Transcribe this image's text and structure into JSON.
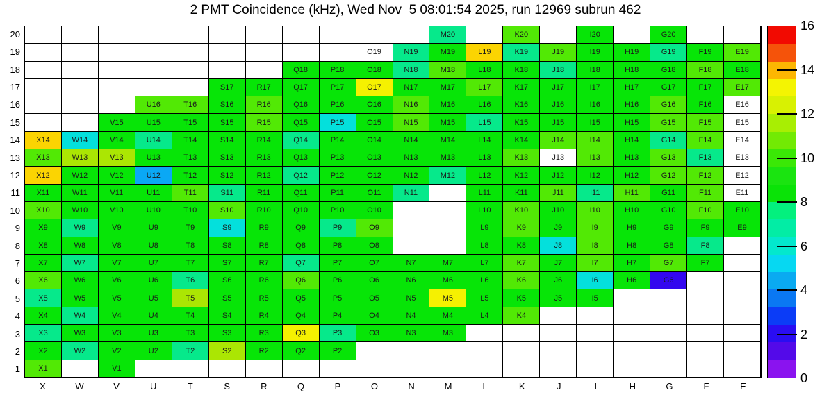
{
  "ui": {
    "title": "2 PMT Coincidence (kHz), Wed Nov  5 08:01:54 2025, run 12969 subrun 462"
  },
  "chart_data": {
    "type": "heatmap",
    "title": "2 PMT Coincidence (kHz), Wed Nov  5 08:01:54 2025, run 12969 subrun 462",
    "unit": "kHz",
    "columns": [
      "X",
      "W",
      "V",
      "U",
      "T",
      "S",
      "R",
      "Q",
      "P",
      "O",
      "N",
      "M",
      "L",
      "K",
      "J",
      "I",
      "H",
      "G",
      "F",
      "E"
    ],
    "rows": [
      20,
      19,
      18,
      17,
      16,
      15,
      14,
      13,
      12,
      11,
      10,
      9,
      8,
      7,
      6,
      5,
      4,
      3,
      2,
      1
    ],
    "palette": {
      "g": "#07e507",
      "lg": "#52e905",
      "yg": "#abe603",
      "y": "#f5f101",
      "gd": "#fbd402",
      "sg": "#06e98b",
      "cy": "#04e0dc",
      "az": "#0aa8f5",
      "bl": "#3307ef",
      "wl": "#ffffff"
    },
    "estimated_value_by_color": {
      "g": 9,
      "lg": 10,
      "yg": 11,
      "y": 12.5,
      "gd": 13.4,
      "sg": 7,
      "cy": 5.5,
      "az": 4.4,
      "bl": 1.6,
      "wl": null
    },
    "cells": [
      [
        null,
        null,
        null,
        null,
        null,
        null,
        null,
        null,
        null,
        null,
        null,
        [
          "M20",
          "sg"
        ],
        null,
        [
          "K20",
          "lg"
        ],
        null,
        [
          "I20",
          "g"
        ],
        null,
        [
          "G20",
          "g"
        ],
        null,
        null
      ],
      [
        null,
        null,
        null,
        null,
        null,
        null,
        null,
        null,
        null,
        [
          "O19",
          "wl"
        ],
        [
          "N19",
          "sg"
        ],
        [
          "M19",
          "g"
        ],
        [
          "L19",
          "gd"
        ],
        [
          "K19",
          "sg"
        ],
        [
          "J19",
          "lg"
        ],
        [
          "I19",
          "g"
        ],
        [
          "H19",
          "g"
        ],
        [
          "G19",
          "sg"
        ],
        [
          "F19",
          "g"
        ],
        [
          "E19",
          "lg"
        ]
      ],
      [
        null,
        null,
        null,
        null,
        null,
        null,
        null,
        [
          "Q18",
          "g"
        ],
        [
          "P18",
          "g"
        ],
        [
          "O18",
          "g"
        ],
        [
          "N18",
          "sg"
        ],
        [
          "M18",
          "lg"
        ],
        [
          "L18",
          "g"
        ],
        [
          "K18",
          "g"
        ],
        [
          "J18",
          "sg"
        ],
        [
          "I18",
          "g"
        ],
        [
          "H18",
          "g"
        ],
        [
          "G18",
          "g"
        ],
        [
          "F18",
          "lg"
        ],
        [
          "E18",
          "g"
        ]
      ],
      [
        null,
        null,
        null,
        null,
        null,
        [
          "S17",
          "g"
        ],
        [
          "R17",
          "g"
        ],
        [
          "Q17",
          "g"
        ],
        [
          "P17",
          "g"
        ],
        [
          "O17",
          "y"
        ],
        [
          "N17",
          "g"
        ],
        [
          "M17",
          "g"
        ],
        [
          "L17",
          "lg"
        ],
        [
          "K17",
          "g"
        ],
        [
          "J17",
          "g"
        ],
        [
          "I17",
          "g"
        ],
        [
          "H17",
          "g"
        ],
        [
          "G17",
          "g"
        ],
        [
          "F17",
          "g"
        ],
        [
          "E17",
          "lg"
        ]
      ],
      [
        null,
        null,
        null,
        [
          "U16",
          "lg"
        ],
        [
          "T16",
          "lg"
        ],
        [
          "S16",
          "g"
        ],
        [
          "R16",
          "lg"
        ],
        [
          "Q16",
          "g"
        ],
        [
          "P16",
          "g"
        ],
        [
          "O16",
          "g"
        ],
        [
          "N16",
          "lg"
        ],
        [
          "M16",
          "g"
        ],
        [
          "L16",
          "g"
        ],
        [
          "K16",
          "g"
        ],
        [
          "J16",
          "g"
        ],
        [
          "I16",
          "g"
        ],
        [
          "H16",
          "g"
        ],
        [
          "G16",
          "lg"
        ],
        [
          "F16",
          "g"
        ],
        [
          "E16",
          "wl"
        ]
      ],
      [
        null,
        null,
        [
          "V15",
          "g"
        ],
        [
          "U15",
          "g"
        ],
        [
          "T15",
          "g"
        ],
        [
          "S15",
          "g"
        ],
        [
          "R15",
          "lg"
        ],
        [
          "Q15",
          "g"
        ],
        [
          "P15",
          "cy"
        ],
        [
          "O15",
          "g"
        ],
        [
          "N15",
          "lg"
        ],
        [
          "M15",
          "g"
        ],
        [
          "L15",
          "sg"
        ],
        [
          "K15",
          "g"
        ],
        [
          "J15",
          "g"
        ],
        [
          "I15",
          "g"
        ],
        [
          "H15",
          "g"
        ],
        [
          "G15",
          "lg"
        ],
        [
          "F15",
          "lg"
        ],
        [
          "E15",
          "wl"
        ]
      ],
      [
        [
          "X14",
          "gd"
        ],
        [
          "W14",
          "cy"
        ],
        [
          "V14",
          "g"
        ],
        [
          "U14",
          "sg"
        ],
        [
          "T14",
          "g"
        ],
        [
          "S14",
          "g"
        ],
        [
          "R14",
          "g"
        ],
        [
          "Q14",
          "sg"
        ],
        [
          "P14",
          "g"
        ],
        [
          "O14",
          "g"
        ],
        [
          "N14",
          "g"
        ],
        [
          "M14",
          "g"
        ],
        [
          "L14",
          "g"
        ],
        [
          "K14",
          "g"
        ],
        [
          "J14",
          "lg"
        ],
        [
          "I14",
          "lg"
        ],
        [
          "H14",
          "g"
        ],
        [
          "G14",
          "sg"
        ],
        [
          "F14",
          "lg"
        ],
        [
          "E14",
          "wl"
        ]
      ],
      [
        [
          "X13",
          "lg"
        ],
        [
          "W13",
          "yg"
        ],
        [
          "V13",
          "yg"
        ],
        [
          "U13",
          "g"
        ],
        [
          "T13",
          "g"
        ],
        [
          "S13",
          "g"
        ],
        [
          "R13",
          "g"
        ],
        [
          "Q13",
          "g"
        ],
        [
          "P13",
          "g"
        ],
        [
          "O13",
          "g"
        ],
        [
          "N13",
          "g"
        ],
        [
          "M13",
          "g"
        ],
        [
          "L13",
          "g"
        ],
        [
          "K13",
          "lg"
        ],
        [
          "J13",
          "wl"
        ],
        [
          "I13",
          "lg"
        ],
        [
          "H13",
          "g"
        ],
        [
          "G13",
          "lg"
        ],
        [
          "F13",
          "sg"
        ],
        [
          "E13",
          "wl"
        ]
      ],
      [
        [
          "X12",
          "gd"
        ],
        [
          "W12",
          "g"
        ],
        [
          "V12",
          "g"
        ],
        [
          "U12",
          "az"
        ],
        [
          "T12",
          "g"
        ],
        [
          "S12",
          "g"
        ],
        [
          "R12",
          "g"
        ],
        [
          "Q12",
          "sg"
        ],
        [
          "P12",
          "g"
        ],
        [
          "O12",
          "g"
        ],
        [
          "N12",
          "g"
        ],
        [
          "M12",
          "sg"
        ],
        [
          "L12",
          "g"
        ],
        [
          "K12",
          "g"
        ],
        [
          "J12",
          "g"
        ],
        [
          "I12",
          "g"
        ],
        [
          "H12",
          "g"
        ],
        [
          "G12",
          "lg"
        ],
        [
          "F12",
          "lg"
        ],
        [
          "E12",
          "wl"
        ]
      ],
      [
        [
          "X11",
          "g"
        ],
        [
          "W11",
          "g"
        ],
        [
          "V11",
          "g"
        ],
        [
          "U11",
          "g"
        ],
        [
          "T11",
          "lg"
        ],
        [
          "S11",
          "sg"
        ],
        [
          "R11",
          "g"
        ],
        [
          "Q11",
          "g"
        ],
        [
          "P11",
          "g"
        ],
        [
          "O11",
          "g"
        ],
        [
          "N11",
          "sg"
        ],
        null,
        [
          "L11",
          "g"
        ],
        [
          "K11",
          "g"
        ],
        [
          "J11",
          "lg"
        ],
        [
          "I11",
          "sg"
        ],
        [
          "H11",
          "lg"
        ],
        [
          "G11",
          "g"
        ],
        [
          "F11",
          "lg"
        ],
        [
          "E11",
          "wl"
        ]
      ],
      [
        [
          "X10",
          "lg"
        ],
        [
          "W10",
          "g"
        ],
        [
          "V10",
          "g"
        ],
        [
          "U10",
          "g"
        ],
        [
          "T10",
          "g"
        ],
        [
          "S10",
          "lg"
        ],
        [
          "R10",
          "g"
        ],
        [
          "Q10",
          "g"
        ],
        [
          "P10",
          "g"
        ],
        [
          "O10",
          "g"
        ],
        null,
        null,
        [
          "L10",
          "g"
        ],
        [
          "K10",
          "lg"
        ],
        [
          "J10",
          "g"
        ],
        [
          "I10",
          "lg"
        ],
        [
          "H10",
          "g"
        ],
        [
          "G10",
          "g"
        ],
        [
          "F10",
          "lg"
        ],
        [
          "E10",
          "g"
        ]
      ],
      [
        [
          "X9",
          "g"
        ],
        [
          "W9",
          "sg"
        ],
        [
          "V9",
          "g"
        ],
        [
          "U9",
          "g"
        ],
        [
          "T9",
          "g"
        ],
        [
          "S9",
          "cy"
        ],
        [
          "R9",
          "g"
        ],
        [
          "Q9",
          "g"
        ],
        [
          "P9",
          "sg"
        ],
        [
          "O9",
          "lg"
        ],
        null,
        null,
        [
          "L9",
          "g"
        ],
        [
          "K9",
          "lg"
        ],
        [
          "J9",
          "g"
        ],
        [
          "I9",
          "lg"
        ],
        [
          "H9",
          "g"
        ],
        [
          "G9",
          "g"
        ],
        [
          "F9",
          "g"
        ],
        [
          "E9",
          "g"
        ]
      ],
      [
        [
          "X8",
          "g"
        ],
        [
          "W8",
          "g"
        ],
        [
          "V8",
          "g"
        ],
        [
          "U8",
          "g"
        ],
        [
          "T8",
          "g"
        ],
        [
          "S8",
          "g"
        ],
        [
          "R8",
          "g"
        ],
        [
          "Q8",
          "g"
        ],
        [
          "P8",
          "g"
        ],
        [
          "O8",
          "g"
        ],
        null,
        null,
        [
          "L8",
          "g"
        ],
        [
          "K8",
          "g"
        ],
        [
          "J8",
          "cy"
        ],
        [
          "I8",
          "lg"
        ],
        [
          "H8",
          "g"
        ],
        [
          "G8",
          "g"
        ],
        [
          "F8",
          "sg"
        ],
        null
      ],
      [
        [
          "X7",
          "g"
        ],
        [
          "W7",
          "sg"
        ],
        [
          "V7",
          "g"
        ],
        [
          "U7",
          "g"
        ],
        [
          "T7",
          "g"
        ],
        [
          "S7",
          "g"
        ],
        [
          "R7",
          "g"
        ],
        [
          "Q7",
          "sg"
        ],
        [
          "P7",
          "g"
        ],
        [
          "O7",
          "g"
        ],
        [
          "N7",
          "g"
        ],
        [
          "M7",
          "g"
        ],
        [
          "L7",
          "g"
        ],
        [
          "K7",
          "lg"
        ],
        [
          "J7",
          "g"
        ],
        [
          "I7",
          "lg"
        ],
        [
          "H7",
          "g"
        ],
        [
          "G7",
          "lg"
        ],
        [
          "F7",
          "g"
        ],
        null
      ],
      [
        [
          "X6",
          "lg"
        ],
        [
          "W6",
          "g"
        ],
        [
          "V6",
          "g"
        ],
        [
          "U6",
          "g"
        ],
        [
          "T6",
          "sg"
        ],
        [
          "S6",
          "g"
        ],
        [
          "R6",
          "g"
        ],
        [
          "Q6",
          "lg"
        ],
        [
          "P6",
          "g"
        ],
        [
          "O6",
          "g"
        ],
        [
          "N6",
          "g"
        ],
        [
          "M6",
          "g"
        ],
        [
          "L6",
          "g"
        ],
        [
          "K6",
          "lg"
        ],
        [
          "J6",
          "g"
        ],
        [
          "I6",
          "cy"
        ],
        [
          "H6",
          "g"
        ],
        [
          "G6",
          "bl"
        ],
        null,
        null
      ],
      [
        [
          "X5",
          "sg"
        ],
        [
          "W5",
          "g"
        ],
        [
          "V5",
          "g"
        ],
        [
          "U5",
          "g"
        ],
        [
          "T5",
          "yg"
        ],
        [
          "S5",
          "g"
        ],
        [
          "R5",
          "g"
        ],
        [
          "Q5",
          "g"
        ],
        [
          "P5",
          "g"
        ],
        [
          "O5",
          "g"
        ],
        [
          "N5",
          "g"
        ],
        [
          "M5",
          "y"
        ],
        [
          "L5",
          "g"
        ],
        [
          "K5",
          "g"
        ],
        [
          "J5",
          "g"
        ],
        [
          "I5",
          "g"
        ],
        null,
        null,
        null,
        null
      ],
      [
        [
          "X4",
          "g"
        ],
        [
          "W4",
          "sg"
        ],
        [
          "V4",
          "g"
        ],
        [
          "U4",
          "g"
        ],
        [
          "T4",
          "g"
        ],
        [
          "S4",
          "g"
        ],
        [
          "R4",
          "g"
        ],
        [
          "Q4",
          "g"
        ],
        [
          "P4",
          "g"
        ],
        [
          "O4",
          "g"
        ],
        [
          "N4",
          "g"
        ],
        [
          "M4",
          "g"
        ],
        [
          "L4",
          "g"
        ],
        [
          "K4",
          "lg"
        ],
        null,
        null,
        null,
        null,
        null,
        null
      ],
      [
        [
          "X3",
          "sg"
        ],
        [
          "W3",
          "g"
        ],
        [
          "V3",
          "g"
        ],
        [
          "U3",
          "g"
        ],
        [
          "T3",
          "g"
        ],
        [
          "S3",
          "g"
        ],
        [
          "R3",
          "g"
        ],
        [
          "Q3",
          "y"
        ],
        [
          "P3",
          "sg"
        ],
        [
          "O3",
          "g"
        ],
        [
          "N3",
          "g"
        ],
        [
          "M3",
          "g"
        ],
        null,
        null,
        null,
        null,
        null,
        null,
        null,
        null
      ],
      [
        [
          "X2",
          "g"
        ],
        [
          "W2",
          "sg"
        ],
        [
          "V2",
          "g"
        ],
        [
          "U2",
          "g"
        ],
        [
          "T2",
          "sg"
        ],
        [
          "S2",
          "yg"
        ],
        [
          "R2",
          "g"
        ],
        [
          "Q2",
          "g"
        ],
        [
          "P2",
          "g"
        ],
        null,
        null,
        null,
        null,
        null,
        null,
        null,
        null,
        null,
        null,
        null
      ],
      [
        [
          "X1",
          "lg"
        ],
        null,
        [
          "V1",
          "g"
        ],
        null,
        null,
        null,
        null,
        null,
        null,
        null,
        null,
        null,
        null,
        null,
        null,
        null,
        null,
        null,
        null,
        null
      ]
    ],
    "colorbar": {
      "min": 0,
      "max": 16,
      "tick_labels": [
        "0",
        "2",
        "4",
        "6",
        "8",
        "10",
        "12",
        "14",
        "16"
      ],
      "bands": [
        "#8a13ef",
        "#530ae9",
        "#2a0df2",
        "#0b3cf7",
        "#0a78f3",
        "#0aaaf1",
        "#06d8f2",
        "#03e8cd",
        "#02eda5",
        "#03f07e",
        "#0ae307",
        "#1ae410",
        "#3ae806",
        "#72ea04",
        "#a8ee03",
        "#d8f102",
        "#f4f402",
        "#fcb602",
        "#f5530a",
        "#f20a01"
      ]
    }
  }
}
